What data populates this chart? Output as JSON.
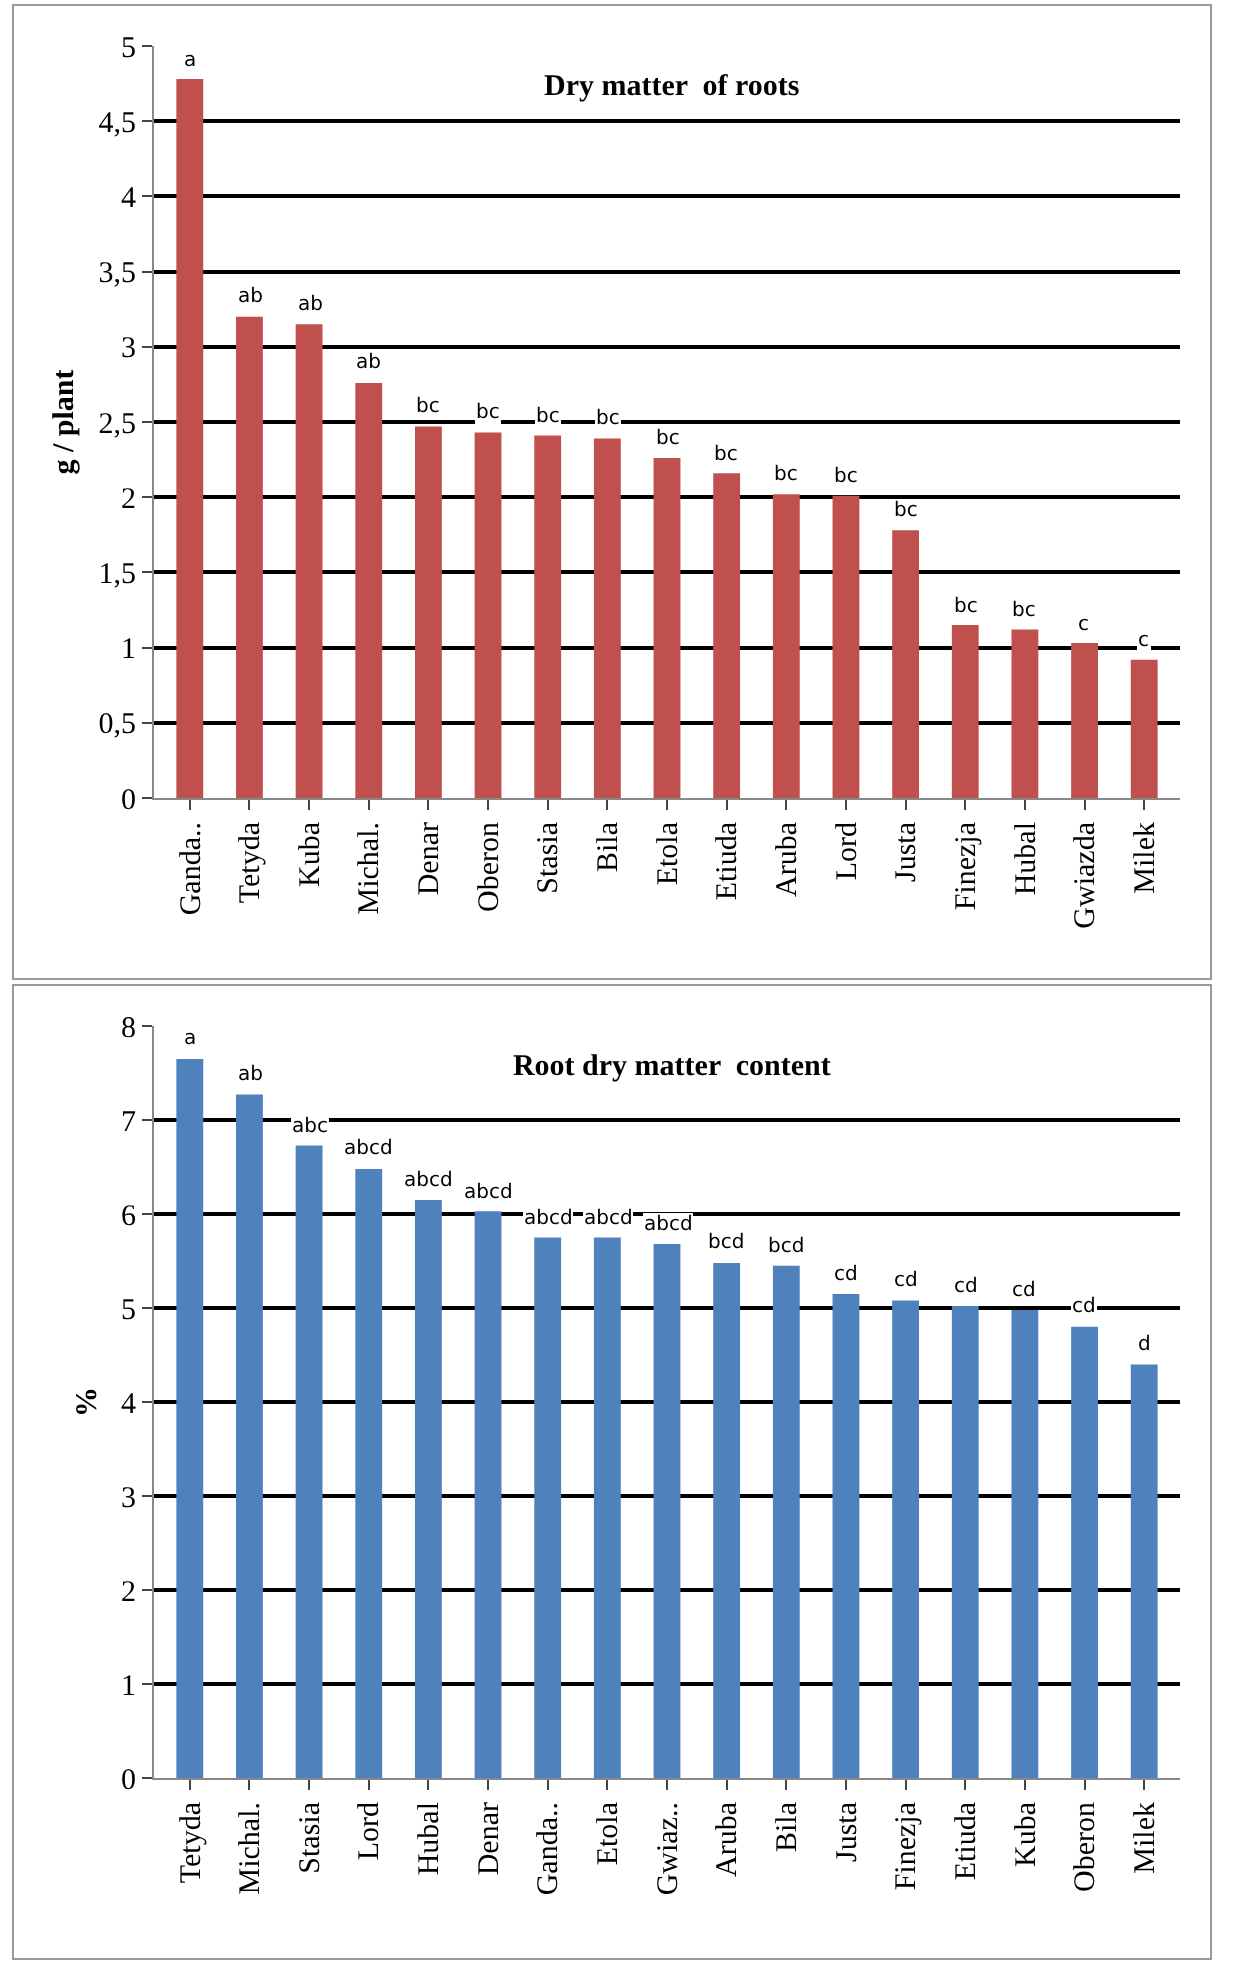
{
  "chart_data": [
    {
      "type": "bar",
      "title": "Dry matter  of roots",
      "ylabel": "g / plant",
      "categories": [
        "Ganda..",
        "Tetyda",
        "Kuba",
        "Michal.",
        "Denar",
        "Oberon",
        "Stasia",
        "Bila",
        "Etola",
        "Etiuda",
        "Aruba",
        "Lord",
        "Justa",
        "Finezja",
        "Hubal",
        "Gwiazda",
        "Milek"
      ],
      "series": [
        {
          "color": "#c0504d",
          "values": [
            4.78,
            3.2,
            3.15,
            2.76,
            2.47,
            2.43,
            2.41,
            2.39,
            2.26,
            2.16,
            2.02,
            2.01,
            1.78,
            1.15,
            1.12,
            1.03,
            0.92
          ],
          "value_labels": [
            "a",
            "ab",
            "ab",
            "ab",
            "bc",
            "bc",
            "bc",
            "bc",
            "bc",
            "bc",
            "bc",
            "bc",
            "bc",
            "bc",
            "bc",
            "c",
            "c"
          ]
        }
      ],
      "ylim": [
        0,
        5
      ],
      "yticks": [
        0,
        {
          "value": 0.5,
          "label": "0,5"
        },
        1,
        {
          "value": 1.5,
          "label": "1,5"
        },
        2,
        {
          "value": 2.5,
          "label": "2,5"
        },
        3,
        {
          "value": 3.5,
          "label": "3,5"
        },
        4,
        {
          "value": 4.5,
          "label": "4,5"
        },
        5
      ],
      "grid": "y"
    },
    {
      "type": "bar",
      "title": "Root dry matter  content",
      "ylabel": "%",
      "categories": [
        "Tetyda",
        "Michal.",
        "Stasia",
        "Lord",
        "Hubal",
        "Denar",
        "Ganda..",
        "Etola",
        "Gwiaz..",
        "Aruba",
        "Bila",
        "Justa",
        "Finezja",
        "Etiuda",
        "Kuba",
        "Oberon",
        "Milek"
      ],
      "series": [
        {
          "color": "#4f81bd",
          "values": [
            7.65,
            7.27,
            6.73,
            6.48,
            6.15,
            6.03,
            5.75,
            5.75,
            5.68,
            5.48,
            5.45,
            5.15,
            5.08,
            5.02,
            4.98,
            4.8,
            4.4
          ],
          "value_labels": [
            "a",
            "ab",
            "abc",
            "abcd",
            "abcd",
            "abcd",
            "abcd",
            "abcd",
            "abcd",
            "bcd",
            "bcd",
            "cd",
            "cd",
            "cd",
            "cd",
            "cd",
            "d"
          ]
        }
      ],
      "ylim": [
        0,
        8
      ],
      "yticks": [
        0,
        1,
        2,
        3,
        4,
        5,
        6,
        7,
        8
      ],
      "grid": "y"
    }
  ]
}
